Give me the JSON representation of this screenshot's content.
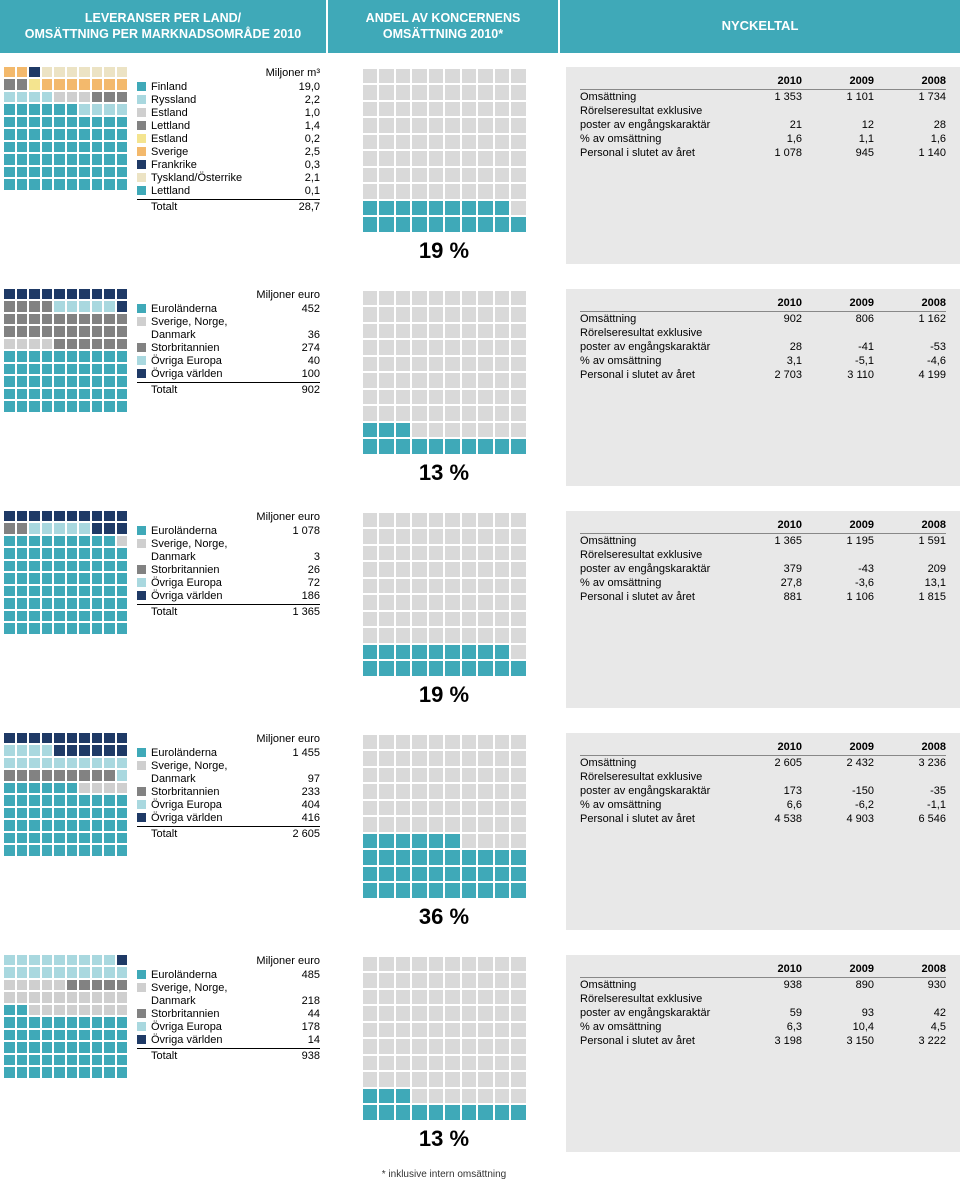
{
  "headers": {
    "h1a": "LEVERANSER PER LAND/",
    "h1b": "OMSÄTTNING PER MARKNADSOMRÅDE 2010",
    "h2a": "ANDEL AV KONCERNENS",
    "h2b": "OMSÄTTNING 2010*",
    "h3": "NYCKELTAL"
  },
  "footnote": "* inklusive intern omsättning",
  "colors": {
    "teal": "#3fa9b8",
    "lt_teal": "#a9d8df",
    "grey": "#cfcfcf",
    "dk_grey": "#828282",
    "yellow": "#f4e48f",
    "orange": "#f3b96c",
    "navy": "#1f3a66",
    "lt_beige": "#ece3c4",
    "bg_grey": "#e8e8e8"
  },
  "totalt_label": "Totalt",
  "table_years": [
    "2010",
    "2009",
    "2008"
  ],
  "table_rows_labels": {
    "r1": "Omsättning",
    "r2": "Rörelseresultat exklusive",
    "r3": "poster av engångskaraktär",
    "r4": "% av omsättning",
    "r5": "Personal i slutet av året"
  },
  "sections": [
    {
      "legend_title": "Miljoner m³",
      "percent": "19 %",
      "distinct_colors": true,
      "items": [
        {
          "label": "Finland",
          "value": "19,0",
          "color": "#3fa9b8"
        },
        {
          "label": "Ryssland",
          "value": "2,2",
          "color": "#a9d8df"
        },
        {
          "label": "Estland",
          "value": "1,0",
          "color": "#cfcfcf"
        },
        {
          "label": "Lettland",
          "value": "1,4",
          "color": "#828282"
        },
        {
          "label": "Estland",
          "value": "0,2",
          "color": "#f4e48f"
        },
        {
          "label": "Sverige",
          "value": "2,5",
          "color": "#f3b96c"
        },
        {
          "label": "Frankrike",
          "value": "0,3",
          "color": "#1f3a66"
        },
        {
          "label": "Tyskland/Österrike",
          "value": "2,1",
          "color": "#ece3c4"
        },
        {
          "label": "Lettland",
          "value": "0,1",
          "color": "#3fa9b8"
        }
      ],
      "total": "28,7",
      "waffle_fill": 66,
      "waffle_colors": [
        "#3fa9b8",
        "#3fa9b8",
        "#3fa9b8",
        "#3fa9b8",
        "#3fa9b8",
        "#3fa9b8",
        "#3fa9b8",
        "#3fa9b8",
        "#3fa9b8",
        "#3fa9b8",
        "#3fa9b8",
        "#3fa9b8",
        "#3fa9b8",
        "#3fa9b8",
        "#3fa9b8",
        "#3fa9b8",
        "#3fa9b8",
        "#3fa9b8",
        "#3fa9b8",
        "#3fa9b8",
        "#3fa9b8",
        "#3fa9b8",
        "#3fa9b8",
        "#3fa9b8",
        "#3fa9b8",
        "#3fa9b8",
        "#3fa9b8",
        "#3fa9b8",
        "#3fa9b8",
        "#3fa9b8",
        "#3fa9b8",
        "#3fa9b8",
        "#3fa9b8",
        "#3fa9b8",
        "#3fa9b8",
        "#3fa9b8",
        "#3fa9b8",
        "#3fa9b8",
        "#3fa9b8",
        "#3fa9b8",
        "#3fa9b8",
        "#3fa9b8",
        "#3fa9b8",
        "#3fa9b8",
        "#3fa9b8",
        "#3fa9b8",
        "#3fa9b8",
        "#3fa9b8",
        "#3fa9b8",
        "#3fa9b8",
        "#3fa9b8",
        "#3fa9b8",
        "#3fa9b8",
        "#3fa9b8",
        "#3fa9b8",
        "#3fa9b8",
        "#3fa9b8",
        "#3fa9b8",
        "#3fa9b8",
        "#3fa9b8",
        "#3fa9b8",
        "#3fa9b8",
        "#3fa9b8",
        "#3fa9b8",
        "#3fa9b8",
        "#3fa9b8",
        "#a9d8df",
        "#a9d8df",
        "#a9d8df",
        "#a9d8df",
        "#a9d8df",
        "#a9d8df",
        "#a9d8df",
        "#a9d8df",
        "#cfcfcf",
        "#cfcfcf",
        "#cfcfcf",
        "#828282",
        "#828282",
        "#828282",
        "#828282",
        "#828282",
        "#f4e48f",
        "#f3b96c",
        "#f3b96c",
        "#f3b96c",
        "#f3b96c",
        "#f3b96c",
        "#f3b96c",
        "#f3b96c",
        "#f3b96c",
        "#f3b96c",
        "#1f3a66",
        "#ece3c4",
        "#ece3c4",
        "#ece3c4",
        "#ece3c4",
        "#ece3c4",
        "#ece3c4",
        "#ece3c4"
      ],
      "mid_filled": 19,
      "table": {
        "r1": [
          "1 353",
          "1 101",
          "1 734"
        ],
        "r3": [
          "21",
          "12",
          "28"
        ],
        "r4": [
          "1,6",
          "1,1",
          "1,6"
        ],
        "r5": [
          "1 078",
          "945",
          "1 140"
        ]
      }
    },
    {
      "legend_title": "Miljoner euro",
      "percent": "13 %",
      "items": [
        {
          "label": "Euroländerna",
          "value": "452",
          "color": "#3fa9b8"
        },
        {
          "label": "Sverige, Norge,\nDanmark",
          "value": "36",
          "color": "#cfcfcf"
        },
        {
          "label": "Storbritannien",
          "value": "274",
          "color": "#828282"
        },
        {
          "label": "Övriga Europa",
          "value": "40",
          "color": "#a9d8df"
        },
        {
          "label": "Övriga världen",
          "value": "100",
          "color": "#1f3a66"
        }
      ],
      "total": "902",
      "waffle_colors_counts": [
        [
          "#3fa9b8",
          50
        ],
        [
          "#cfcfcf",
          4
        ],
        [
          "#828282",
          30
        ],
        [
          "#a9d8df",
          5
        ],
        [
          "#1f3a66",
          11
        ]
      ],
      "mid_filled": 13,
      "table": {
        "r1": [
          "902",
          "806",
          "1 162"
        ],
        "r3": [
          "28",
          "-41",
          "-53"
        ],
        "r4": [
          "3,1",
          "-5,1",
          "-4,6"
        ],
        "r5": [
          "2 703",
          "3 110",
          "4 199"
        ]
      }
    },
    {
      "legend_title": "Miljoner euro",
      "percent": "19 %",
      "items": [
        {
          "label": "Euroländerna",
          "value": "1 078",
          "color": "#3fa9b8"
        },
        {
          "label": "Sverige, Norge,\nDanmark",
          "value": "3",
          "color": "#cfcfcf"
        },
        {
          "label": "Storbritannien",
          "value": "26",
          "color": "#828282"
        },
        {
          "label": "Övriga Europa",
          "value": "72",
          "color": "#a9d8df"
        },
        {
          "label": "Övriga världen",
          "value": "186",
          "color": "#1f3a66"
        }
      ],
      "total": "1 365",
      "waffle_colors_counts": [
        [
          "#3fa9b8",
          79
        ],
        [
          "#cfcfcf",
          1
        ],
        [
          "#828282",
          2
        ],
        [
          "#a9d8df",
          5
        ],
        [
          "#1f3a66",
          13
        ]
      ],
      "mid_filled": 19,
      "table": {
        "r1": [
          "1 365",
          "1 195",
          "1 591"
        ],
        "r3": [
          "379",
          "-43",
          "209"
        ],
        "r4": [
          "27,8",
          "-3,6",
          "13,1"
        ],
        "r5": [
          "881",
          "1 106",
          "1 815"
        ]
      }
    },
    {
      "legend_title": "Miljoner euro",
      "percent": "36 %",
      "items": [
        {
          "label": "Euroländerna",
          "value": "1 455",
          "color": "#3fa9b8"
        },
        {
          "label": "Sverige, Norge,\nDanmark",
          "value": "97",
          "color": "#cfcfcf"
        },
        {
          "label": "Storbritannien",
          "value": "233",
          "color": "#828282"
        },
        {
          "label": "Övriga Europa",
          "value": "404",
          "color": "#a9d8df"
        },
        {
          "label": "Övriga världen",
          "value": "416",
          "color": "#1f3a66"
        }
      ],
      "total": "2 605",
      "waffle_colors_counts": [
        [
          "#3fa9b8",
          56
        ],
        [
          "#cfcfcf",
          4
        ],
        [
          "#828282",
          9
        ],
        [
          "#a9d8df",
          15
        ],
        [
          "#1f3a66",
          16
        ]
      ],
      "mid_filled": 36,
      "table": {
        "r1": [
          "2 605",
          "2 432",
          "3 236"
        ],
        "r3": [
          "173",
          "-150",
          "-35"
        ],
        "r4": [
          "6,6",
          "-6,2",
          "-1,1"
        ],
        "r5": [
          "4 538",
          "4 903",
          "6 546"
        ]
      }
    },
    {
      "legend_title": "Miljoner euro",
      "percent": "13 %",
      "items": [
        {
          "label": "Euroländerna",
          "value": "485",
          "color": "#3fa9b8"
        },
        {
          "label": "Sverige, Norge,\nDanmark",
          "value": "218",
          "color": "#cfcfcf"
        },
        {
          "label": "Storbritannien",
          "value": "44",
          "color": "#828282"
        },
        {
          "label": "Övriga Europa",
          "value": "178",
          "color": "#a9d8df"
        },
        {
          "label": "Övriga världen",
          "value": "14",
          "color": "#1f3a66"
        }
      ],
      "total": "938",
      "waffle_colors_counts": [
        [
          "#3fa9b8",
          52
        ],
        [
          "#cfcfcf",
          23
        ],
        [
          "#828282",
          5
        ],
        [
          "#a9d8df",
          19
        ],
        [
          "#1f3a66",
          1
        ]
      ],
      "mid_filled": 13,
      "table": {
        "r1": [
          "938",
          "890",
          "930"
        ],
        "r3": [
          "59",
          "93",
          "42"
        ],
        "r4": [
          "6,3",
          "10,4",
          "4,5"
        ],
        "r5": [
          "3 198",
          "3 150",
          "3 222"
        ]
      }
    }
  ]
}
